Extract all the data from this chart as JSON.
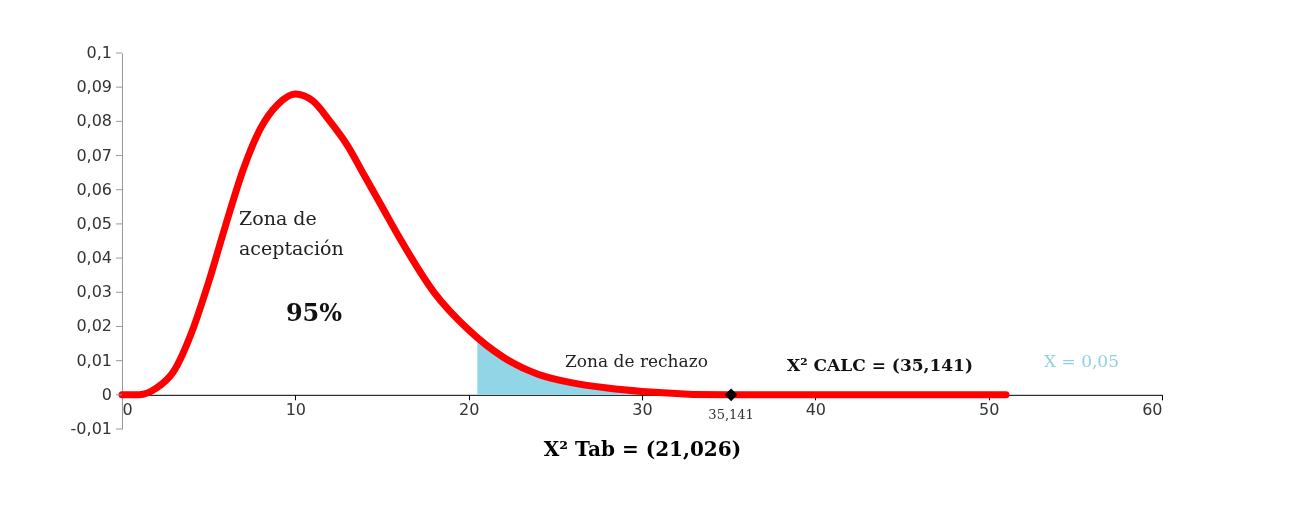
{
  "chart_data": {
    "type": "line",
    "xlabel": "X² Tab = (21,026)",
    "xlim": [
      0,
      60
    ],
    "xticks": [
      0,
      10,
      20,
      30,
      40,
      50,
      60
    ],
    "ylim": [
      -0.01,
      0.1
    ],
    "yticks": [
      {
        "value": -0.01,
        "label": "-0,01"
      },
      {
        "value": 0,
        "label": "0"
      },
      {
        "value": 0.01,
        "label": "0,01"
      },
      {
        "value": 0.02,
        "label": "0,02"
      },
      {
        "value": 0.03,
        "label": "0,03"
      },
      {
        "value": 0.04,
        "label": "0,04"
      },
      {
        "value": 0.05,
        "label": "0,05"
      },
      {
        "value": 0.06,
        "label": "0,06"
      },
      {
        "value": 0.07,
        "label": "0,07"
      },
      {
        "value": 0.08,
        "label": "0,08"
      },
      {
        "value": 0.09,
        "label": "0,09"
      },
      {
        "value": 0.1,
        "label": "0,1"
      }
    ],
    "grid": false,
    "series": [
      {
        "type": "area",
        "color": "#92d5e6",
        "x": [
          20.5,
          22,
          24,
          26,
          28,
          30
        ],
        "values": [
          0.016,
          0.011,
          0.006,
          0.0035,
          0.002,
          0.001
        ]
      },
      {
        "color": "#ff0000",
        "x": [
          0,
          1,
          2,
          3,
          4,
          5,
          6,
          7,
          8,
          9,
          10,
          11,
          12,
          13,
          14,
          15,
          16,
          18,
          20,
          22,
          24,
          26,
          28,
          30,
          35,
          40,
          45,
          51
        ],
        "values": [
          0,
          0,
          0.002,
          0.007,
          0.018,
          0.033,
          0.05,
          0.066,
          0.078,
          0.085,
          0.088,
          0.086,
          0.08,
          0.073,
          0.064,
          0.055,
          0.046,
          0.03,
          0.019,
          0.011,
          0.006,
          0.0035,
          0.002,
          0.001,
          0,
          0,
          0,
          0
        ]
      },
      {
        "type": "scatter",
        "color": "#000000",
        "marker": "diamond",
        "x": [
          35.141
        ],
        "values": [
          0
        ]
      }
    ],
    "annotations": [
      "Zona de\naceptación",
      "95%",
      "Zona de rechazo",
      "X² CALC = (35,141)",
      "X = 0,05",
      {
        "text": "35,141",
        "x": 35.141,
        "y": 0
      }
    ]
  }
}
